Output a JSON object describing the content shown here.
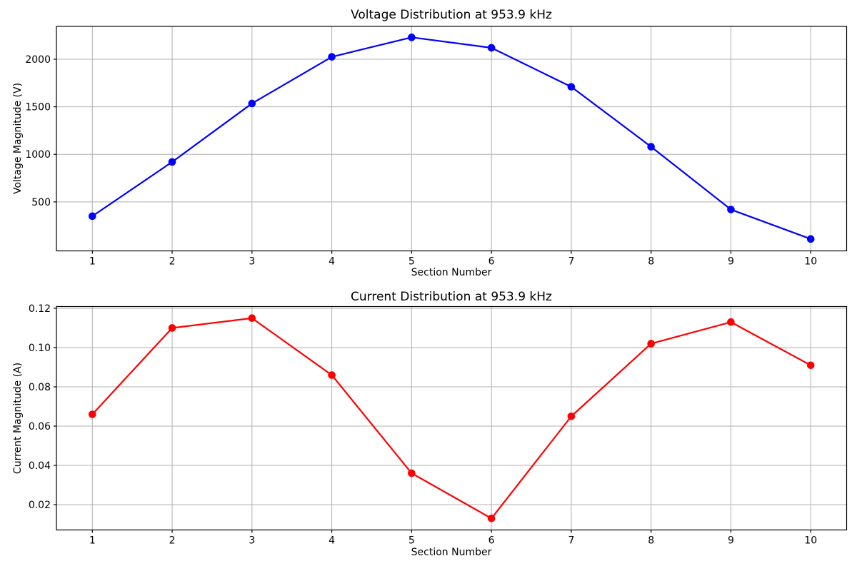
{
  "figure": {
    "background": "#ffffff",
    "grid_color": "#b0b0b0",
    "spine_color": "#000000",
    "tick_text_color": "#000000"
  },
  "chart_data": [
    {
      "type": "line",
      "title": "Voltage Distribution at 953.9 kHz",
      "xlabel": "Section Number",
      "ylabel": "Voltage Magnitude (V)",
      "series": [
        {
          "name": "voltage",
          "color": "#0000ff",
          "marker": "circle",
          "x": [
            1,
            2,
            3,
            4,
            5,
            6,
            7,
            8,
            9,
            10
          ],
          "values": [
            350,
            920,
            1535,
            2025,
            2230,
            2120,
            1710,
            1080,
            420,
            110
          ]
        }
      ],
      "xlim": [
        0.55,
        10.45
      ],
      "ylim": [
        -15,
        2345
      ],
      "x_ticks": [
        1,
        2,
        3,
        4,
        5,
        6,
        7,
        8,
        9,
        10
      ],
      "x_tick_labels": [
        "1",
        "2",
        "3",
        "4",
        "5",
        "6",
        "7",
        "8",
        "9",
        "10"
      ],
      "y_ticks": [
        500,
        1000,
        1500,
        2000
      ],
      "y_tick_labels": [
        "500",
        "1000",
        "1500",
        "2000"
      ],
      "grid": true,
      "legend": "none"
    },
    {
      "type": "line",
      "title": "Current Distribution at 953.9 kHz",
      "xlabel": "Section Number",
      "ylabel": "Current Magnitude (A)",
      "series": [
        {
          "name": "current",
          "color": "#ff0000",
          "marker": "circle",
          "x": [
            1,
            2,
            3,
            4,
            5,
            6,
            7,
            8,
            9,
            10
          ],
          "values": [
            0.066,
            0.11,
            0.115,
            0.086,
            0.036,
            0.013,
            0.065,
            0.102,
            0.113,
            0.091
          ]
        }
      ],
      "xlim": [
        0.55,
        10.45
      ],
      "ylim": [
        0.0071,
        0.1209
      ],
      "x_ticks": [
        1,
        2,
        3,
        4,
        5,
        6,
        7,
        8,
        9,
        10
      ],
      "x_tick_labels": [
        "1",
        "2",
        "3",
        "4",
        "5",
        "6",
        "7",
        "8",
        "9",
        "10"
      ],
      "y_ticks": [
        0.02,
        0.04,
        0.06,
        0.08,
        0.1,
        0.12
      ],
      "y_tick_labels": [
        "0.02",
        "0.04",
        "0.06",
        "0.08",
        "0.10",
        "0.12"
      ],
      "grid": true,
      "legend": "none"
    }
  ]
}
